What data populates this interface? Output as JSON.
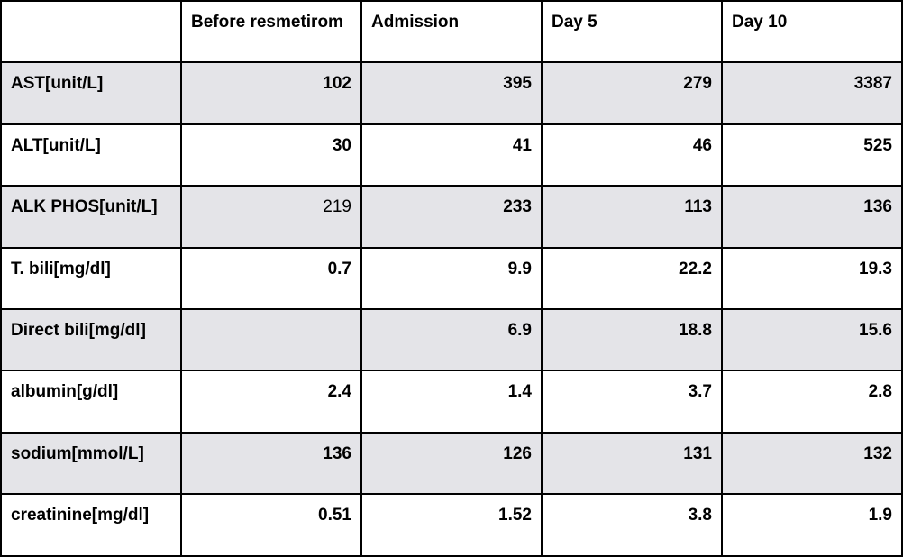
{
  "table": {
    "headers": [
      "",
      "Before resmetirom",
      "Admission",
      "Day 5",
      "Day 10"
    ],
    "rows": [
      {
        "label": "AST[unit/L]",
        "values": [
          "102",
          "395",
          "279",
          "3387"
        ]
      },
      {
        "label": "ALT[unit/L]",
        "values": [
          "30",
          "41",
          "46",
          "525"
        ]
      },
      {
        "label": "ALK PHOS[unit/L]",
        "values": [
          "219",
          "233",
          "113",
          "136"
        ]
      },
      {
        "label": "T. bili[mg/dl]",
        "values": [
          "0.7",
          "9.9",
          "22.2",
          "19.3"
        ]
      },
      {
        "label": "Direct bili[mg/dl]",
        "values": [
          "",
          "6.9",
          "18.8",
          "15.6"
        ]
      },
      {
        "label": "albumin[g/dl]",
        "values": [
          "2.4",
          "1.4",
          "3.7",
          "2.8"
        ]
      },
      {
        "label": "sodium[mmol/L]",
        "values": [
          "136",
          "126",
          "131",
          "132"
        ]
      },
      {
        "label": "creatinine[mg/dl]",
        "values": [
          "0.51",
          "1.52",
          "3.8",
          "1.9"
        ]
      }
    ]
  },
  "colors": {
    "shaded_row": "#e4e4e8",
    "border": "#000000"
  }
}
